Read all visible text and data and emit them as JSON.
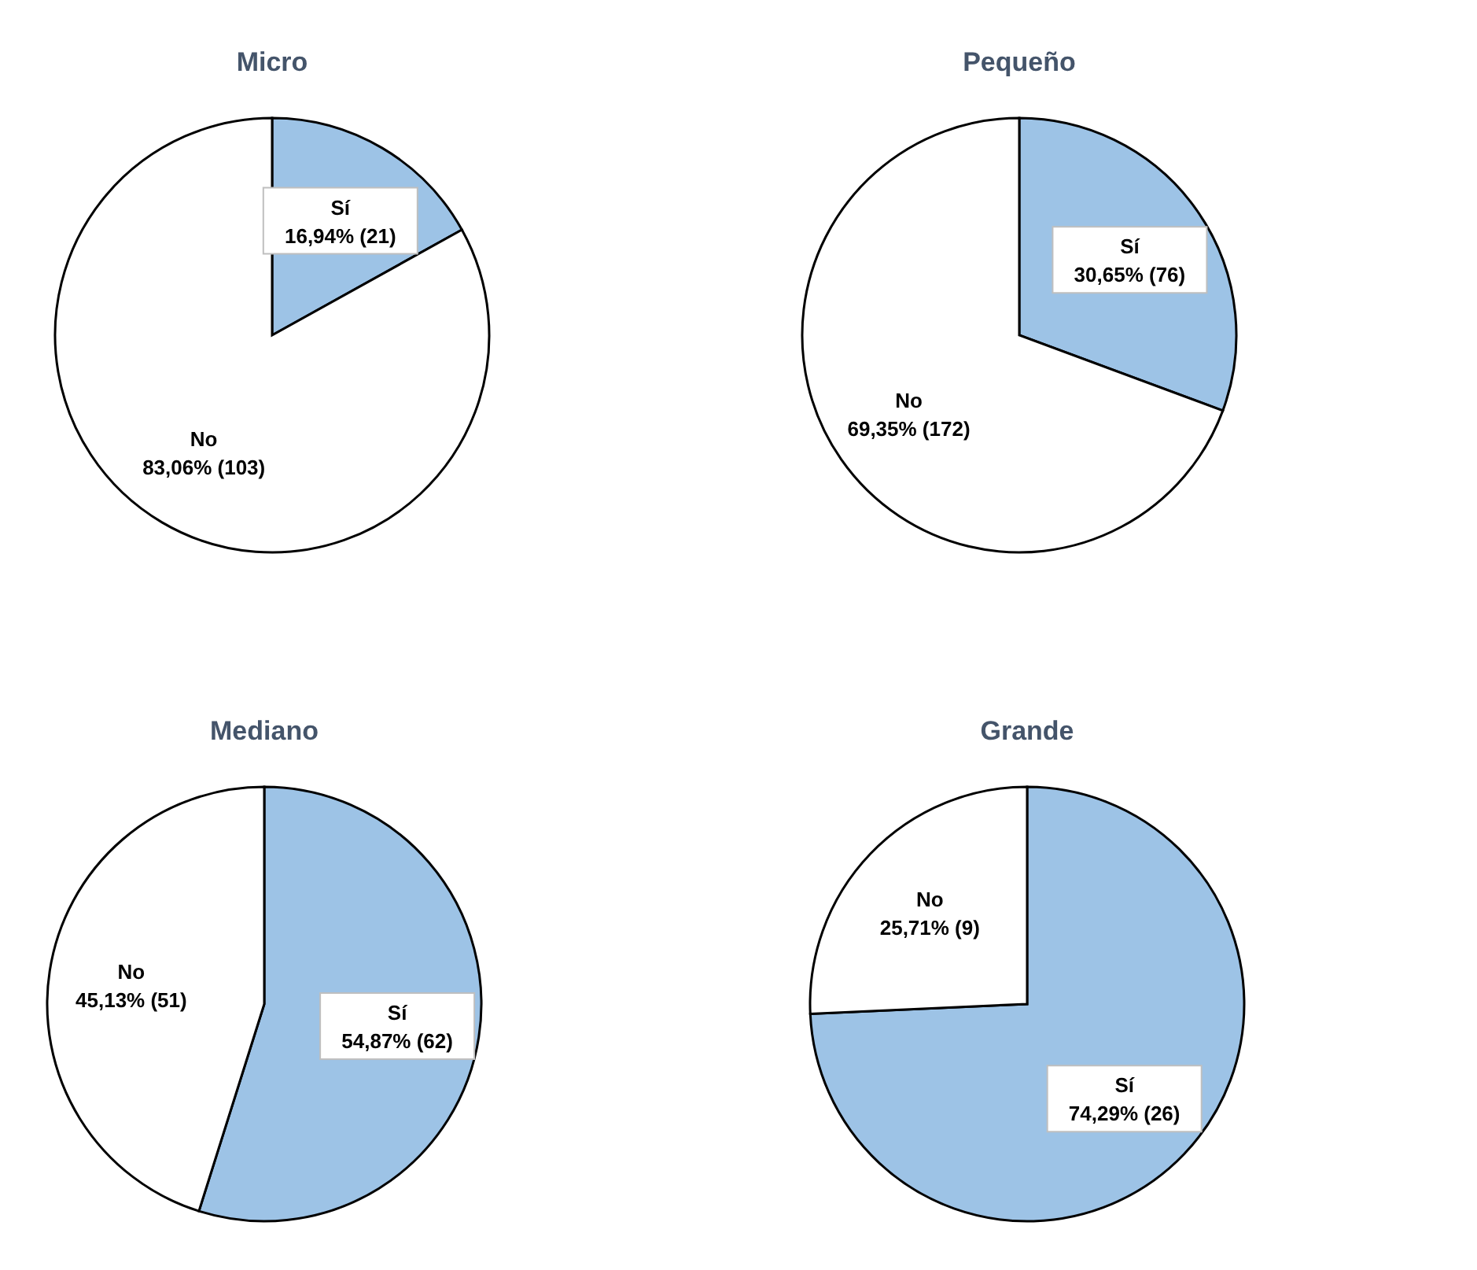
{
  "chart_data": [
    {
      "type": "pie",
      "title": "Micro",
      "categories": [
        "Sí",
        "No"
      ],
      "values": [
        21,
        103
      ],
      "value_labels": [
        "16,94% (21)",
        "83,06% (103)"
      ],
      "colors": [
        "#9dc3e6",
        "#ffffff"
      ]
    },
    {
      "type": "pie",
      "title": "Pequeño",
      "categories": [
        "Sí",
        "No"
      ],
      "values": [
        76,
        172
      ],
      "value_labels": [
        "30,65% (76)",
        "69,35% (172)"
      ],
      "colors": [
        "#9dc3e6",
        "#ffffff"
      ]
    },
    {
      "type": "pie",
      "title": "Mediano",
      "categories": [
        "Sí",
        "No"
      ],
      "values": [
        62,
        51
      ],
      "value_labels": [
        "54,87% (62)",
        "45,13% (51)"
      ],
      "colors": [
        "#9dc3e6",
        "#ffffff"
      ]
    },
    {
      "type": "pie",
      "title": "Grande",
      "categories": [
        "Sí",
        "No"
      ],
      "values": [
        26,
        9
      ],
      "value_labels": [
        "74,29% (26)",
        "25,71% (9)"
      ],
      "colors": [
        "#9dc3e6",
        "#ffffff"
      ]
    }
  ]
}
